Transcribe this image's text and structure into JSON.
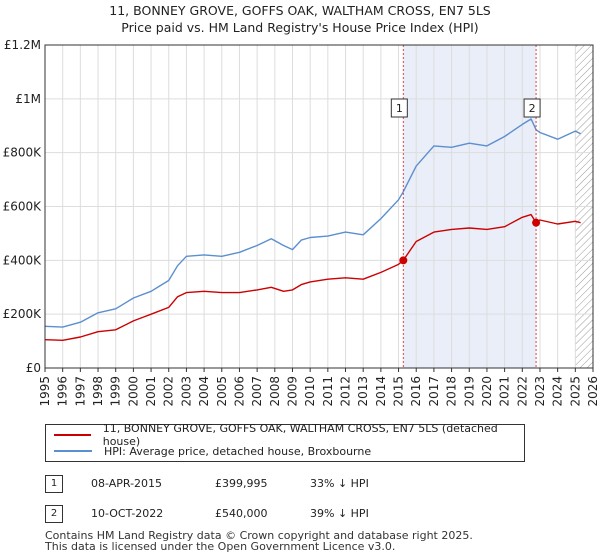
{
  "header": {
    "title": "11, BONNEY GROVE, GOFFS OAK, WALTHAM CROSS, EN7 5LS",
    "subtitle": "Price paid vs. HM Land Registry's House Price Index (HPI)"
  },
  "chart_data": {
    "type": "line",
    "title": "11, BONNEY GROVE, GOFFS OAK, WALTHAM CROSS, EN7 5LS",
    "subtitle": "Price paid vs. HM Land Registry's House Price Index (HPI)",
    "xlabel": "",
    "ylabel": "",
    "xlim": [
      1995,
      2026
    ],
    "ylim": [
      0,
      1200000
    ],
    "y_ticks": [
      {
        "value": 0,
        "label": "£0"
      },
      {
        "value": 200000,
        "label": "£200K"
      },
      {
        "value": 400000,
        "label": "£400K"
      },
      {
        "value": 600000,
        "label": "£600K"
      },
      {
        "value": 800000,
        "label": "£800K"
      },
      {
        "value": 1000000,
        "label": "£1M"
      },
      {
        "value": 1200000,
        "label": "£1.2M"
      }
    ],
    "x_ticks": [
      "1995",
      "1996",
      "1997",
      "1998",
      "1999",
      "2000",
      "2001",
      "2002",
      "2003",
      "2004",
      "2005",
      "2006",
      "2007",
      "2008",
      "2009",
      "2010",
      "2011",
      "2012",
      "2013",
      "2014",
      "2015",
      "2016",
      "2017",
      "2018",
      "2019",
      "2020",
      "2021",
      "2022",
      "2023",
      "2024",
      "2025",
      "2026"
    ],
    "grid": true,
    "hatch_from": 2025.0,
    "shaded_range": [
      2015.27,
      2022.78
    ],
    "series": [
      {
        "name": "11, BONNEY GROVE, GOFFS OAK, WALTHAM CROSS, EN7 5LS (detached house)",
        "color": "#cc0000",
        "x": [
          1995.0,
          1996.0,
          1997.0,
          1998.0,
          1999.0,
          2000.0,
          2000.6,
          2001.0,
          2002.0,
          2002.5,
          2003.0,
          2004.0,
          2005.0,
          2006.0,
          2007.0,
          2007.8,
          2008.5,
          2009.0,
          2009.5,
          2010.0,
          2011.0,
          2012.0,
          2013.0,
          2014.0,
          2015.0,
          2015.27,
          2016.0,
          2017.0,
          2018.0,
          2019.0,
          2020.0,
          2021.0,
          2022.0,
          2022.5,
          2022.78,
          2023.0,
          2024.0,
          2025.0,
          2025.3
        ],
        "values": [
          105000,
          103000,
          115000,
          135000,
          142000,
          175000,
          190000,
          200000,
          225000,
          265000,
          280000,
          285000,
          280000,
          280000,
          290000,
          300000,
          285000,
          290000,
          310000,
          320000,
          330000,
          335000,
          330000,
          355000,
          385000,
          399995,
          470000,
          505000,
          515000,
          520000,
          515000,
          525000,
          560000,
          570000,
          540000,
          550000,
          535000,
          545000,
          540000
        ]
      },
      {
        "name": "HPI: Average price, detached house, Broxbourne",
        "color": "#5b8fcf",
        "x": [
          1995.0,
          1996.0,
          1997.0,
          1998.0,
          1999.0,
          2000.0,
          2001.0,
          2001.5,
          2002.0,
          2002.5,
          2003.0,
          2004.0,
          2005.0,
          2006.0,
          2007.0,
          2007.8,
          2008.5,
          2009.0,
          2009.5,
          2010.0,
          2011.0,
          2012.0,
          2013.0,
          2014.0,
          2015.0,
          2015.27,
          2016.0,
          2017.0,
          2018.0,
          2019.0,
          2020.0,
          2021.0,
          2022.0,
          2022.5,
          2022.78,
          2023.0,
          2024.0,
          2025.0,
          2025.3
        ],
        "values": [
          155000,
          152000,
          170000,
          205000,
          220000,
          260000,
          285000,
          305000,
          325000,
          380000,
          415000,
          420000,
          415000,
          430000,
          455000,
          480000,
          455000,
          440000,
          475000,
          485000,
          490000,
          505000,
          495000,
          555000,
          625000,
          655000,
          750000,
          825000,
          820000,
          835000,
          825000,
          860000,
          905000,
          925000,
          885000,
          875000,
          850000,
          880000,
          870000
        ]
      }
    ],
    "markers": [
      {
        "id": "1",
        "x": 2015.27,
        "value": 399995
      },
      {
        "id": "2",
        "x": 2022.78,
        "value": 540000
      }
    ]
  },
  "legend": {
    "items": [
      {
        "label": "11, BONNEY GROVE, GOFFS OAK, WALTHAM CROSS, EN7 5LS (detached house)",
        "color": "#cc0000"
      },
      {
        "label": "HPI: Average price, detached house, Broxbourne",
        "color": "#5b8fcf"
      }
    ]
  },
  "transactions": [
    {
      "id": "1",
      "date": "08-APR-2015",
      "price": "£399,995",
      "hpi": "33% ↓ HPI"
    },
    {
      "id": "2",
      "date": "10-OCT-2022",
      "price": "£540,000",
      "hpi": "39% ↓ HPI"
    }
  ],
  "footer": {
    "line1": "Contains HM Land Registry data © Crown copyright and database right 2025.",
    "line2": "This data is licensed under the Open Government Licence v3.0."
  }
}
